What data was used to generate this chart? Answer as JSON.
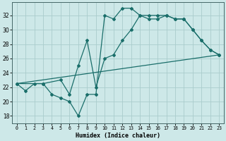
{
  "title": "",
  "xlabel": "Humidex (Indice chaleur)",
  "background_color": "#cde8e8",
  "grid_color": "#aacccc",
  "line_color": "#1a6e6a",
  "xlim": [
    -0.5,
    23.5
  ],
  "ylim": [
    17.0,
    33.8
  ],
  "yticks": [
    18,
    20,
    22,
    24,
    26,
    28,
    30,
    32
  ],
  "xticks": [
    0,
    1,
    2,
    3,
    4,
    5,
    6,
    7,
    8,
    9,
    10,
    11,
    12,
    13,
    14,
    15,
    16,
    17,
    18,
    19,
    20,
    21,
    22,
    23
  ],
  "line1_x": [
    0,
    1,
    2,
    3,
    4,
    5,
    6,
    7,
    8,
    9,
    10,
    11,
    12,
    13,
    14,
    15,
    16,
    17,
    18,
    19,
    20,
    21,
    22,
    23
  ],
  "line1_y": [
    22.5,
    21.5,
    22.5,
    22.5,
    21.0,
    20.5,
    20.0,
    18.0,
    21.0,
    21.0,
    32.0,
    31.5,
    33.0,
    33.0,
    32.0,
    32.0,
    32.0,
    32.0,
    31.5,
    31.5,
    30.0,
    28.5,
    27.2,
    26.5
  ],
  "line2_x": [
    0,
    3,
    5,
    6,
    7,
    8,
    9,
    10,
    11,
    12,
    13,
    14,
    15,
    16,
    17,
    18,
    19,
    20,
    21,
    22,
    23
  ],
  "line2_y": [
    22.5,
    22.5,
    23.0,
    21.0,
    25.0,
    28.5,
    22.0,
    26.0,
    26.5,
    28.5,
    30.0,
    32.0,
    31.5,
    31.5,
    32.0,
    31.5,
    31.5,
    30.0,
    28.5,
    27.2,
    26.5
  ],
  "line3_x": [
    0,
    23
  ],
  "line3_y": [
    22.5,
    26.5
  ]
}
